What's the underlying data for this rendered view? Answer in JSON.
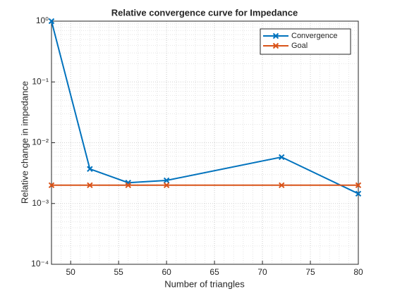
{
  "chart_data": {
    "type": "line",
    "title": "Relative convergence curve for Impedance",
    "xlabel": "Number of triangles",
    "ylabel": "Relative change in impedance",
    "x": [
      48,
      52,
      56,
      60,
      72,
      80
    ],
    "series": [
      {
        "name": "Convergence",
        "color": "#0072BD",
        "values": [
          1,
          0.0037,
          0.0022,
          0.0024,
          0.0058,
          0.00145
        ]
      },
      {
        "name": "Goal",
        "color": "#D95319",
        "values": [
          0.002,
          0.002,
          0.002,
          0.002,
          0.002,
          0.002
        ]
      }
    ],
    "xlim": [
      48,
      80
    ],
    "xticks": [
      50,
      55,
      60,
      65,
      70,
      75,
      80
    ],
    "ylim": [
      0.0001,
      1
    ],
    "ylog": true,
    "yticks": [
      {
        "value": 0.0001,
        "label": "10⁻⁴"
      },
      {
        "value": 0.001,
        "label": "10⁻³"
      },
      {
        "value": 0.01,
        "label": "10⁻²"
      },
      {
        "value": 0.1,
        "label": "10⁻¹"
      },
      {
        "value": 1,
        "label": "10⁰"
      }
    ],
    "grid": true,
    "minor_grid": true,
    "legend": "northeast",
    "marker": "x"
  }
}
